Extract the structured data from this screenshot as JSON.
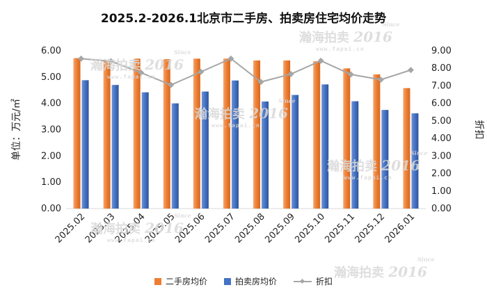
{
  "chart_data": {
    "type": "bar",
    "title": "2025.2-2026.1北京市二手房、拍卖房住宅均价走势",
    "categories": [
      "2025.02",
      "2025.03",
      "2025.04",
      "2025.05",
      "2025.06",
      "2025.07",
      "2025.08",
      "2025.09",
      "2025.10",
      "2025.11",
      "2025.12",
      "2026.01"
    ],
    "series": [
      {
        "name": "二手房均价",
        "axis": "left",
        "kind": "bar",
        "color": "#ed7d31",
        "values": [
          5.72,
          5.6,
          5.7,
          5.68,
          5.7,
          5.7,
          5.63,
          5.63,
          5.6,
          5.33,
          5.1,
          4.58
        ]
      },
      {
        "name": "拍卖房均价",
        "axis": "left",
        "kind": "bar",
        "color": "#4472c4",
        "values": [
          4.88,
          4.7,
          4.42,
          4.0,
          4.45,
          4.87,
          4.07,
          4.32,
          4.72,
          4.08,
          3.75,
          3.62
        ]
      },
      {
        "name": "折扣",
        "axis": "right",
        "kind": "line",
        "color": "#a6a6a6",
        "values": [
          8.55,
          8.4,
          7.75,
          7.05,
          7.8,
          8.55,
          7.22,
          7.67,
          8.43,
          7.65,
          7.35,
          7.9
        ]
      }
    ],
    "ylabel": "单位：万元/㎡",
    "y2label": "折扣",
    "ylim": [
      0,
      6
    ],
    "y2lim": [
      0,
      9
    ],
    "yticks": [
      "0.00",
      "1.00",
      "2.00",
      "3.00",
      "4.00",
      "5.00",
      "6.00"
    ],
    "y2ticks": [
      "0.00",
      "1.00",
      "2.00",
      "3.00",
      "4.00",
      "5.00",
      "6.00",
      "7.00",
      "8.00",
      "9.00"
    ],
    "legend_position": "bottom"
  },
  "watermark": {
    "brand": "瀚海拍卖",
    "since": "Since",
    "url": "www.fapai.cn",
    "year": "2016"
  }
}
